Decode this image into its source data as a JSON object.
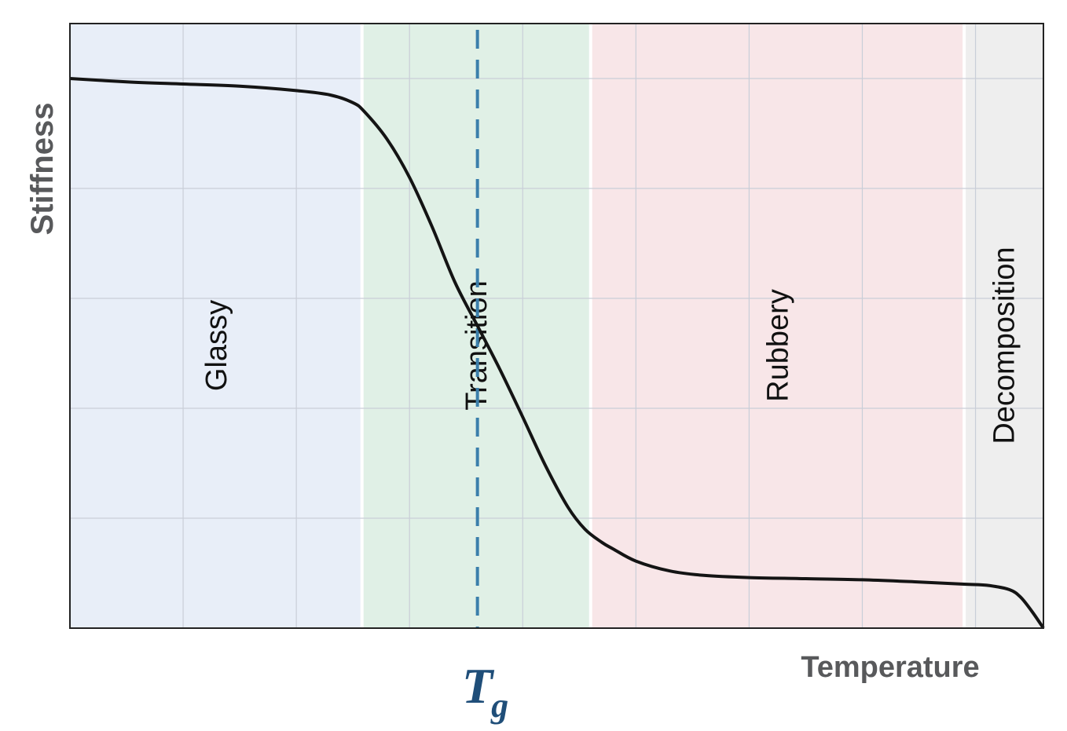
{
  "chart_data": {
    "type": "line",
    "title": "",
    "xlabel": "Temperature",
    "ylabel": "Stiffness",
    "xlim": [
      0,
      8.6
    ],
    "ylim": [
      0,
      5.5
    ],
    "grid": true,
    "regions": [
      {
        "label": "Glassy",
        "x_start": 0,
        "x_end": 2.58,
        "color": "#e8eef8"
      },
      {
        "label": "Transition",
        "x_start": 2.58,
        "x_end": 4.6,
        "color": "#e0f0e6"
      },
      {
        "label": "Rubbery",
        "x_start": 4.6,
        "x_end": 7.9,
        "color": "#f8e6e8"
      },
      {
        "label": "Decomposition",
        "x_start": 7.9,
        "x_end": 8.6,
        "color": "#eeeeee"
      }
    ],
    "tg": {
      "label": "T",
      "subscript": "g",
      "x": 3.6,
      "color": "#3b7fab"
    },
    "series": [
      {
        "color": "#141414",
        "points": [
          [
            0.0,
            5.0
          ],
          [
            0.5,
            4.97
          ],
          [
            1.0,
            4.95
          ],
          [
            1.5,
            4.93
          ],
          [
            2.0,
            4.89
          ],
          [
            2.3,
            4.85
          ],
          [
            2.5,
            4.78
          ],
          [
            2.6,
            4.7
          ],
          [
            2.8,
            4.45
          ],
          [
            3.0,
            4.1
          ],
          [
            3.2,
            3.65
          ],
          [
            3.4,
            3.15
          ],
          [
            3.6,
            2.75
          ],
          [
            3.8,
            2.35
          ],
          [
            4.0,
            1.92
          ],
          [
            4.2,
            1.48
          ],
          [
            4.4,
            1.1
          ],
          [
            4.55,
            0.9
          ],
          [
            4.7,
            0.78
          ],
          [
            4.8,
            0.72
          ],
          [
            5.0,
            0.61
          ],
          [
            5.3,
            0.52
          ],
          [
            5.6,
            0.48
          ],
          [
            6.0,
            0.46
          ],
          [
            6.5,
            0.45
          ],
          [
            7.0,
            0.44
          ],
          [
            7.5,
            0.42
          ],
          [
            7.9,
            0.4
          ],
          [
            8.1,
            0.39
          ],
          [
            8.3,
            0.35
          ],
          [
            8.4,
            0.28
          ],
          [
            8.5,
            0.15
          ],
          [
            8.6,
            0.0
          ]
        ]
      }
    ]
  }
}
